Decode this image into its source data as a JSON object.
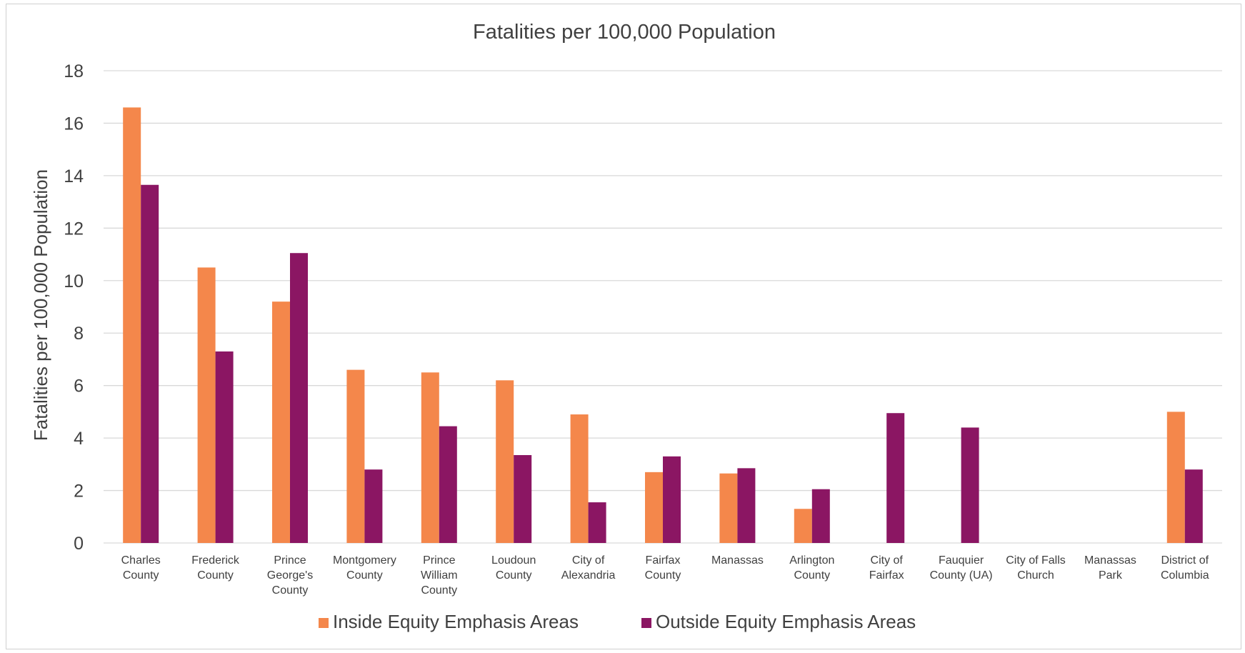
{
  "chart_data": {
    "type": "bar",
    "title": "Fatalities per 100,000 Population",
    "xlabel": "",
    "ylabel": "Fatalities per 100,000 Population",
    "ylim": [
      0,
      18
    ],
    "yticks": [
      "0",
      "2",
      "4",
      "6",
      "8",
      "10",
      "12",
      "14",
      "16",
      "18"
    ],
    "grid": true,
    "legend_position": "bottom",
    "categories": [
      [
        "Charles",
        "County"
      ],
      [
        "Frederick",
        "County"
      ],
      [
        "Prince",
        "George's",
        "County"
      ],
      [
        "Montgomery",
        "County"
      ],
      [
        "Prince",
        "William",
        "County"
      ],
      [
        "Loudoun",
        "County"
      ],
      [
        "City of",
        "Alexandria"
      ],
      [
        "Fairfax",
        "County"
      ],
      [
        "Manassas"
      ],
      [
        "Arlington",
        "County"
      ],
      [
        "City of",
        "Fairfax"
      ],
      [
        "Fauquier",
        "County (UA)"
      ],
      [
        "City of Falls",
        "Church"
      ],
      [
        "Manassas",
        "Park"
      ],
      [
        "District of",
        "Columbia"
      ]
    ],
    "series": [
      {
        "name": "Inside Equity Emphasis Areas",
        "color": "#F4874B",
        "values": [
          16.6,
          10.5,
          9.2,
          6.6,
          6.5,
          6.2,
          4.9,
          2.7,
          2.65,
          1.3,
          0,
          0,
          0,
          0,
          5.0
        ]
      },
      {
        "name": "Outside Equity Emphasis Areas",
        "color": "#8B1663",
        "values": [
          13.65,
          7.3,
          11.05,
          2.8,
          4.45,
          3.35,
          1.55,
          3.3,
          2.85,
          2.05,
          4.95,
          4.4,
          0,
          0,
          2.8
        ]
      }
    ]
  }
}
